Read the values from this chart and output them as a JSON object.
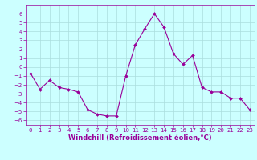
{
  "x": [
    0,
    1,
    2,
    3,
    4,
    5,
    6,
    7,
    8,
    9,
    10,
    11,
    12,
    13,
    14,
    15,
    16,
    17,
    18,
    19,
    20,
    21,
    22,
    23
  ],
  "y": [
    -0.7,
    -2.5,
    -1.5,
    -2.3,
    -2.5,
    -2.8,
    -4.8,
    -5.3,
    -5.5,
    -5.5,
    -1.0,
    2.5,
    4.3,
    6.0,
    4.5,
    1.5,
    0.3,
    1.3,
    -2.3,
    -2.8,
    -2.8,
    -3.5,
    -3.5,
    -4.8
  ],
  "line_color": "#990099",
  "marker": "D",
  "marker_size": 2.0,
  "bg_color": "#ccffff",
  "grid_color": "#aadddd",
  "xlabel": "Windchill (Refroidissement éolien,°C)",
  "ylim": [
    -6.5,
    7.0
  ],
  "xlim": [
    -0.5,
    23.5
  ],
  "yticks": [
    -6,
    -5,
    -4,
    -3,
    -2,
    -1,
    0,
    1,
    2,
    3,
    4,
    5,
    6
  ],
  "xticks": [
    0,
    1,
    2,
    3,
    4,
    5,
    6,
    7,
    8,
    9,
    10,
    11,
    12,
    13,
    14,
    15,
    16,
    17,
    18,
    19,
    20,
    21,
    22,
    23
  ],
  "tick_color": "#990099",
  "label_color": "#990099",
  "tick_fontsize": 5.0,
  "xlabel_fontsize": 6.0,
  "linewidth": 0.8
}
